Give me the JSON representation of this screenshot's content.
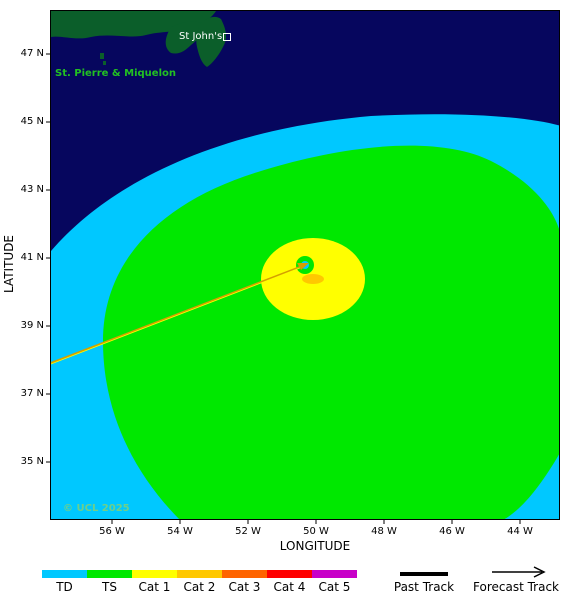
{
  "map": {
    "region_labels": {
      "st_johns": "St John's",
      "st_pierre": "St. Pierre & Miquelon"
    },
    "watermark": "© UCL 2025",
    "colors": {
      "ocean": "#06065e",
      "land": "#0b5e2a",
      "td": "#00c8ff",
      "ts": "#00e800",
      "cat1": "#ffff00",
      "cat2": "#ffc800",
      "cat3": "#ff6400",
      "cat4": "#ff0000",
      "cat5": "#c800c8",
      "track": "#d4a000"
    }
  },
  "axes": {
    "xlabel": "LONGITUDE",
    "ylabel": "LATITUDE",
    "y_ticks": [
      "47 N",
      "45 N",
      "43 N",
      "41 N",
      "39 N",
      "37 N",
      "35 N"
    ],
    "x_ticks": [
      "56 W",
      "54 W",
      "52 W",
      "50 W",
      "48 W",
      "46 W",
      "44 W"
    ]
  },
  "chart_data": {
    "type": "map",
    "lon_range": [
      -57.9,
      -42.9
    ],
    "lat_range": [
      33.5,
      48.5
    ],
    "storm_center": {
      "lon": -50.3,
      "lat": 40.8
    },
    "forecast_track": [
      {
        "lon": -57.9,
        "lat": 37.9
      },
      {
        "lon": -50.3,
        "lat": 40.8
      }
    ],
    "wind_zones": [
      "TD",
      "TS",
      "Cat 1",
      "Cat 2"
    ]
  },
  "legend": {
    "categories": [
      {
        "label": "TD",
        "color": "#00c8ff"
      },
      {
        "label": "TS",
        "color": "#00e800"
      },
      {
        "label": "Cat 1",
        "color": "#ffff00"
      },
      {
        "label": "Cat 2",
        "color": "#ffc800"
      },
      {
        "label": "Cat 3",
        "color": "#ff6400"
      },
      {
        "label": "Cat 4",
        "color": "#ff0000"
      },
      {
        "label": "Cat 5",
        "color": "#c800c8"
      }
    ],
    "past_track": "Past Track",
    "forecast_track": "Forecast Track"
  }
}
